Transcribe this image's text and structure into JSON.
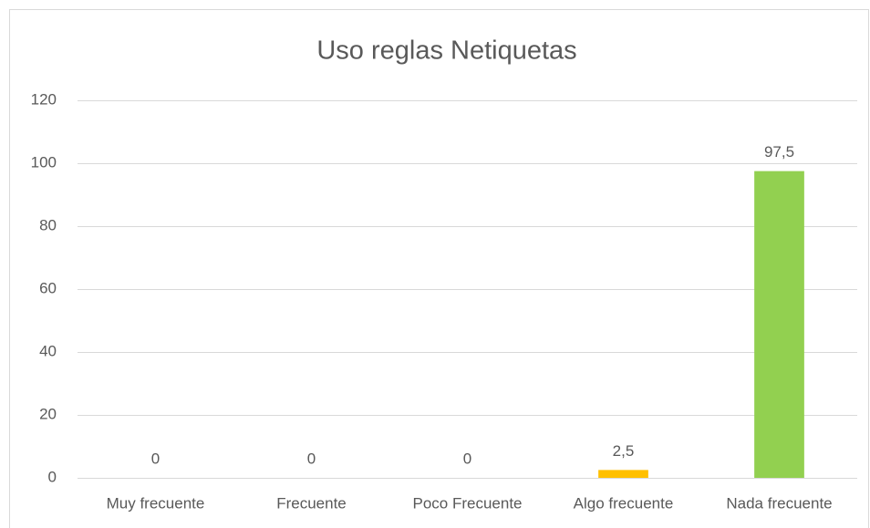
{
  "chart_data": {
    "type": "bar",
    "title": "Uso reglas Netiquetas",
    "categories": [
      "Muy frecuente",
      "Frecuente",
      "Poco Frecuente",
      "Algo frecuente",
      "Nada frecuente"
    ],
    "values": [
      0,
      0,
      0,
      2.5,
      97.5
    ],
    "value_labels": [
      "0",
      "0",
      "0",
      "2,5",
      "97,5"
    ],
    "colors": [
      "#4472c4",
      "#ed7d31",
      "#a5a5a5",
      "#ffc000",
      "#92d050"
    ],
    "ylim": [
      0,
      120
    ],
    "yticks": [
      0,
      20,
      40,
      60,
      80,
      100,
      120
    ],
    "grid": true
  }
}
